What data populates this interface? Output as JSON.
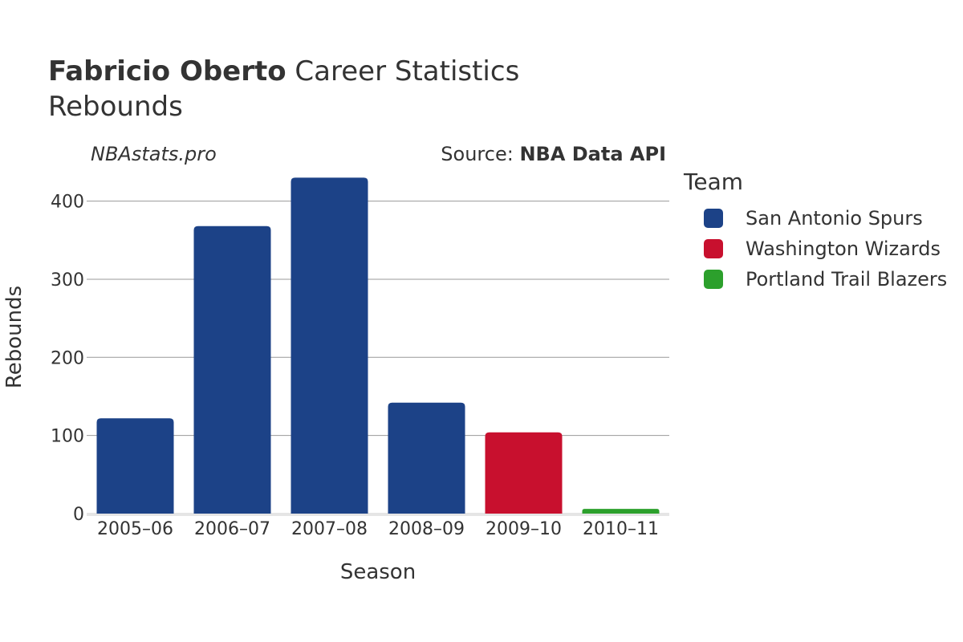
{
  "header": {
    "title_bold": "Fabricio Oberto",
    "title_rest": " Career Statistics",
    "subtitle": "Rebounds",
    "brand": "NBAstats.pro",
    "source_prefix": "Source: ",
    "source_name": "NBA Data API"
  },
  "legend": {
    "title": "Team",
    "items": [
      {
        "label": "San Antonio Spurs",
        "color": "#1c4287"
      },
      {
        "label": "Washington Wizards",
        "color": "#c8102e"
      },
      {
        "label": "Portland Trail Blazers",
        "color": "#2ca02c"
      }
    ]
  },
  "chart_data": {
    "type": "bar",
    "xlabel": "Season",
    "ylabel": "Rebounds",
    "categories": [
      "2005–06",
      "2006–07",
      "2007–08",
      "2008–09",
      "2009–10",
      "2010–11"
    ],
    "values": [
      122,
      368,
      430,
      142,
      104,
      6
    ],
    "teams": [
      "San Antonio Spurs",
      "San Antonio Spurs",
      "San Antonio Spurs",
      "San Antonio Spurs",
      "Washington Wizards",
      "Portland Trail Blazers"
    ],
    "colors": [
      "#1c4287",
      "#1c4287",
      "#1c4287",
      "#1c4287",
      "#c8102e",
      "#2ca02c"
    ],
    "yticks": [
      0,
      100,
      200,
      300,
      400
    ],
    "ylim": [
      0,
      440
    ],
    "grid": true,
    "legend_position": "right"
  }
}
